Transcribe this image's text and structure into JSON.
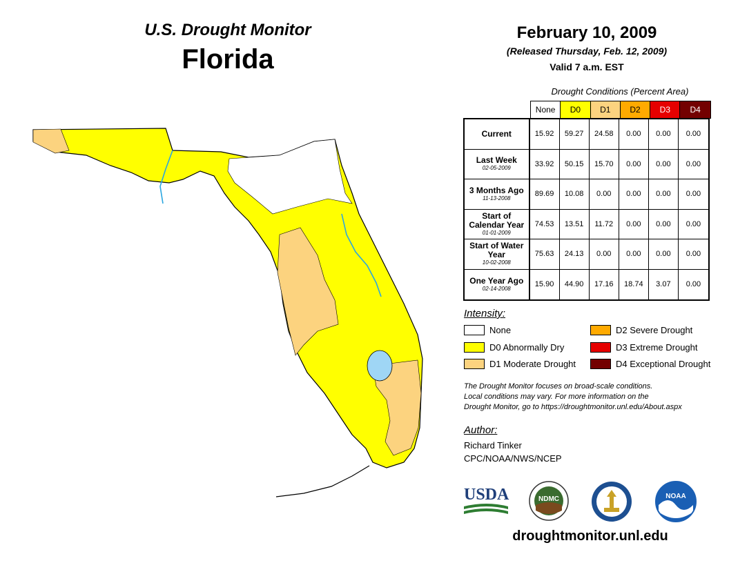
{
  "header": {
    "monitor_title": "U.S. Drought Monitor",
    "state": "Florida",
    "date": "February 10, 2009",
    "released": "(Released Thursday, Feb. 12, 2009)",
    "valid": "Valid 7 a.m. EST"
  },
  "table": {
    "caption": "Drought Conditions (Percent Area)",
    "categories": [
      {
        "label": "None",
        "color": "#ffffff"
      },
      {
        "label": "D0",
        "color": "#ffff00"
      },
      {
        "label": "D1",
        "color": "#fcd37f"
      },
      {
        "label": "D2",
        "color": "#ffaa00"
      },
      {
        "label": "D3",
        "color": "#e60000"
      },
      {
        "label": "D4",
        "color": "#730000"
      }
    ],
    "rows": [
      {
        "name": "Current",
        "date": "",
        "values": [
          "15.92",
          "59.27",
          "24.58",
          "0.00",
          "0.00",
          "0.00"
        ]
      },
      {
        "name": "Last Week",
        "date": "02-05-2009",
        "values": [
          "33.92",
          "50.15",
          "15.70",
          "0.00",
          "0.00",
          "0.00"
        ]
      },
      {
        "name": "3 Months Ago",
        "date": "11-13-2008",
        "values": [
          "89.69",
          "10.08",
          "0.00",
          "0.00",
          "0.00",
          "0.00"
        ]
      },
      {
        "name": "Start of Calendar Year",
        "date": "01-01-2009",
        "values": [
          "74.53",
          "13.51",
          "11.72",
          "0.00",
          "0.00",
          "0.00"
        ]
      },
      {
        "name": "Start of Water Year",
        "date": "10-02-2008",
        "values": [
          "75.63",
          "24.13",
          "0.00",
          "0.00",
          "0.00",
          "0.00"
        ]
      },
      {
        "name": "One Year Ago",
        "date": "02-14-2008",
        "values": [
          "15.90",
          "44.90",
          "17.16",
          "18.74",
          "3.07",
          "0.00"
        ]
      }
    ]
  },
  "legend": {
    "title": "Intensity:",
    "items": [
      {
        "label": "None",
        "color": "#ffffff"
      },
      {
        "label": "D0 Abnormally Dry",
        "color": "#ffff00"
      },
      {
        "label": "D1 Moderate Drought",
        "color": "#fcd37f"
      },
      {
        "label": "D2 Severe Drought",
        "color": "#ffaa00"
      },
      {
        "label": "D3 Extreme Drought",
        "color": "#e60000"
      },
      {
        "label": "D4 Exceptional Drought",
        "color": "#730000"
      }
    ]
  },
  "footnote": {
    "line1": "The Drought Monitor focuses on broad-scale conditions.",
    "line2": "Local conditions may vary. For more information on the",
    "line3": "Drought Monitor, go to https://droughtmonitor.unl.edu/About.aspx"
  },
  "author": {
    "label": "Author:",
    "name": "Richard Tinker",
    "org": "CPC/NOAA/NWS/NCEP"
  },
  "logos": {
    "usda": "USDA",
    "ndmc": "NDMC",
    "noaa": "NOAA"
  },
  "site_url": "droughtmonitor.unl.edu",
  "map": {
    "water_color": "#9fd6f5",
    "river_color": "#2aa6e0"
  }
}
